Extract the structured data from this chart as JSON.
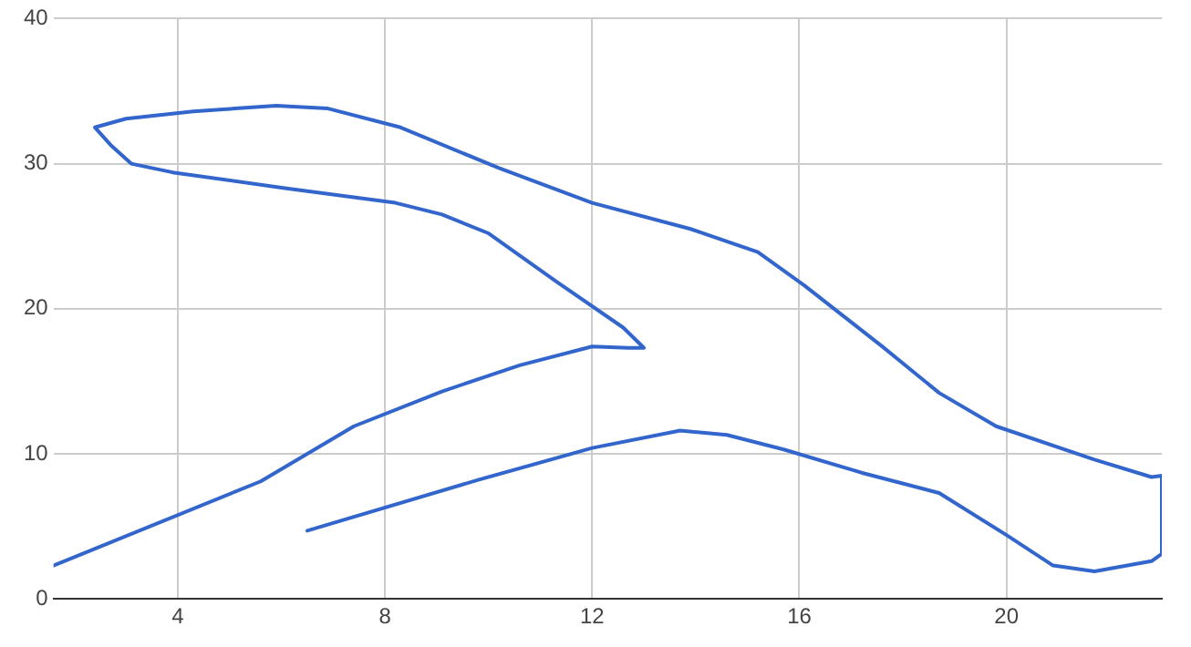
{
  "chart_data": {
    "type": "line",
    "xlim": [
      1.6,
      23
    ],
    "xticks": [
      4,
      8,
      12,
      16,
      20
    ],
    "ylim": [
      0,
      40
    ],
    "yticks": [
      0,
      10,
      20,
      30,
      40
    ],
    "grid": true,
    "legend": false,
    "marker": "none",
    "line_style": "solid",
    "series": [
      {
        "color": "#3366cc",
        "x": [
          1.6,
          5.6,
          7.4,
          9.1,
          10.6,
          12.0,
          12.7,
          13.0,
          12.6,
          11.3,
          10.0,
          9.1,
          8.2,
          6.1,
          3.9,
          3.1,
          2.7,
          2.4,
          3.0,
          4.3,
          5.9,
          6.9,
          8.3,
          10.2,
          12.0,
          13.9,
          15.2,
          16.1,
          17.6,
          18.7,
          19.8,
          21.7,
          22.8,
          23.0,
          23.0,
          22.8,
          21.7,
          20.9,
          20.0,
          18.7,
          17.2,
          15.7,
          14.6,
          13.7,
          12.0,
          9.8,
          6.5
        ],
        "values": [
          2.3,
          8.1,
          11.9,
          14.3,
          16.1,
          17.4,
          17.3,
          17.3,
          18.7,
          21.9,
          25.2,
          26.5,
          27.3,
          28.3,
          29.4,
          30.0,
          31.3,
          32.5,
          33.1,
          33.6,
          34.0,
          33.8,
          32.5,
          29.7,
          27.3,
          25.5,
          23.9,
          21.6,
          17.4,
          14.2,
          11.9,
          9.6,
          8.4,
          8.5,
          3.1,
          2.6,
          1.9,
          2.3,
          4.4,
          7.3,
          8.7,
          10.3,
          11.3,
          11.6,
          10.4,
          8.2,
          4.7
        ]
      }
    ]
  }
}
